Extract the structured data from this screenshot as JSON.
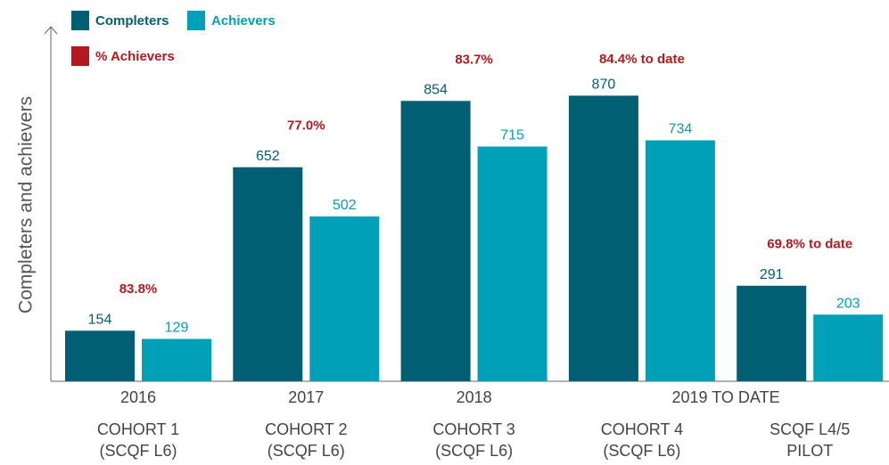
{
  "chart_data": {
    "type": "bar",
    "y_label": "Completers and achievers",
    "years": [
      "2016",
      "2017",
      "2018",
      "2019 TO DATE",
      null
    ],
    "categories": [
      [
        "COHORT 1",
        "(SCQF L6)"
      ],
      [
        "COHORT 2",
        "(SCQF L6)"
      ],
      [
        "COHORT 3",
        "(SCQF L6)"
      ],
      [
        "COHORT 4",
        "(SCQF L6)"
      ],
      [
        "SCQF L4/5",
        "PILOT"
      ]
    ],
    "series": [
      {
        "name": "Completers",
        "color": "#005f73",
        "values": [
          154,
          652,
          854,
          870,
          291
        ]
      },
      {
        "name": "Achievers",
        "color": "#00a0b8",
        "values": [
          129,
          502,
          715,
          734,
          203
        ]
      }
    ],
    "annotations": {
      "name": "% Achievers",
      "color": "#b5191f",
      "values": [
        83.8,
        77.0,
        83.7,
        84.4,
        69.8
      ],
      "value_labels": [
        "83.8%",
        "77.0%",
        "83.7%",
        "84.4% to date",
        "69.8% to date"
      ]
    },
    "ylim": [
      0,
      1080
    ]
  }
}
